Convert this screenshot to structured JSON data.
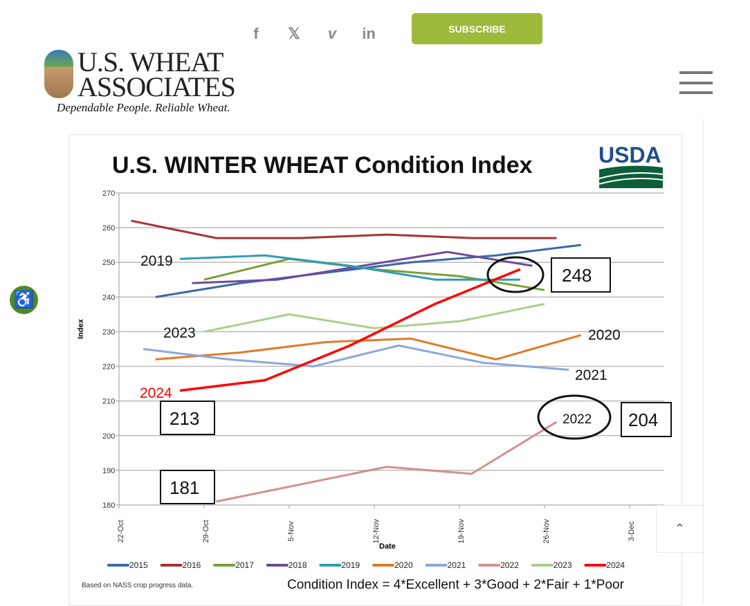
{
  "header": {
    "social": [
      {
        "icon": "facebook-icon",
        "label": "f"
      },
      {
        "icon": "x-icon",
        "label": "𝕏"
      },
      {
        "icon": "vimeo-icon",
        "label": "v"
      },
      {
        "icon": "linkedin-icon",
        "label": "in"
      }
    ],
    "subscribe_label": "SUBSCRIBE",
    "logo_line1": "U.S. WHEAT",
    "logo_line2": "ASSOCIATES",
    "tagline": "Dependable People. Reliable Wheat."
  },
  "scroll_top_label": "⌃",
  "accessibility_label": "♿",
  "chart_data": {
    "type": "line",
    "title": "U.S. WINTER WHEAT Condition Index",
    "logo": "USDA",
    "xlabel": "Date",
    "ylabel": "Index",
    "ylim": [
      180,
      270
    ],
    "yticks": [
      180,
      190,
      200,
      210,
      220,
      230,
      240,
      250,
      260,
      270
    ],
    "xticks": [
      "22-Oct",
      "29-Oct",
      "5-Nov",
      "12-Nov",
      "19-Nov",
      "26-Nov",
      "3-Dec"
    ],
    "x_unit": "days after 22-Oct",
    "grid": true,
    "legend": "bottom",
    "series": [
      {
        "name": "2015",
        "color": "#3a67ae",
        "x": [
          3,
          10,
          17,
          24,
          31,
          38
        ],
        "values": [
          240,
          244,
          247,
          250,
          252,
          255
        ]
      },
      {
        "name": "2016",
        "color": "#a83232",
        "x": [
          1,
          8,
          15,
          22,
          29,
          36
        ],
        "values": [
          262,
          257,
          257,
          258,
          257,
          257
        ]
      },
      {
        "name": "2017",
        "color": "#77a033",
        "x": [
          7,
          14,
          21,
          28,
          35
        ],
        "values": [
          245,
          251,
          248,
          246,
          242
        ]
      },
      {
        "name": "2018",
        "color": "#6d4a9b",
        "x": [
          6,
          13,
          20,
          27,
          34
        ],
        "values": [
          244,
          245,
          249,
          253,
          249
        ]
      },
      {
        "name": "2019",
        "color": "#2e9db8",
        "x": [
          5,
          12,
          19,
          26,
          33
        ],
        "values": [
          251,
          252,
          249,
          245,
          245
        ]
      },
      {
        "name": "2020",
        "color": "#e07b25",
        "x": [
          3,
          10,
          17,
          24,
          31,
          38
        ],
        "values": [
          222,
          224,
          227,
          228,
          222,
          229
        ]
      },
      {
        "name": "2021",
        "color": "#8aa8d8",
        "x": [
          2,
          9,
          16,
          23,
          30,
          37
        ],
        "values": [
          225,
          222,
          220,
          226,
          221,
          219
        ]
      },
      {
        "name": "2022",
        "color": "#d48f8f",
        "x": [
          8,
          15,
          22,
          29,
          36
        ],
        "values": [
          181,
          186,
          191,
          189,
          204
        ]
      },
      {
        "name": "2023",
        "color": "#a9cf8a",
        "x": [
          7,
          14,
          21,
          28,
          35
        ],
        "values": [
          230,
          235,
          231,
          233,
          238
        ]
      },
      {
        "name": "2024",
        "color": "#ff0000",
        "x": [
          5,
          12,
          19,
          26,
          33
        ],
        "values": [
          213,
          216,
          226,
          238,
          248
        ]
      }
    ],
    "annotations": {
      "label_2019": "2019",
      "label_2023": "2023",
      "label_2024": "2024",
      "label_2020": "2020",
      "label_2021": "2021",
      "label_2022": "2022",
      "box_248": "248",
      "box_213": "213",
      "box_181": "181",
      "box_204": "204"
    },
    "footnote": "Based on NASS crop progress data.",
    "formula": "Condition Index = 4*Excellent + 3*Good + 2*Fair + 1*Poor"
  }
}
